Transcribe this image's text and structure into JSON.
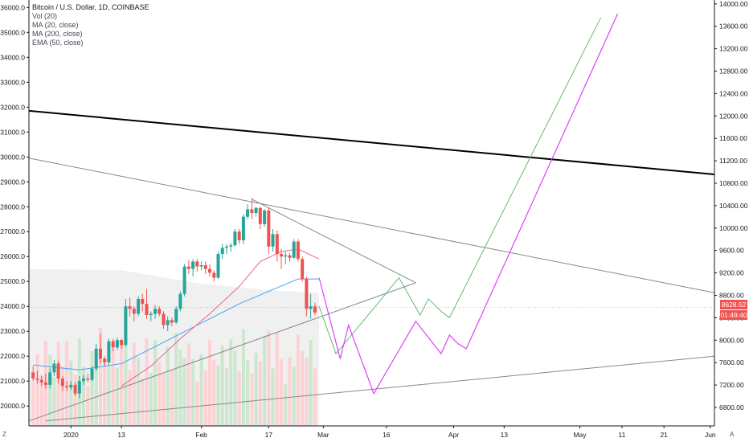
{
  "chart_data": {
    "type": "candlestick",
    "title": "Bitcoin / U.S. Dollar, 1D, COINBASE",
    "indicators": [
      "Vol (20)",
      "MA (20, close)",
      "MA (200, close)",
      "EMA (50, close)"
    ],
    "left_axis": {
      "ticks": [
        20000,
        21000,
        22000,
        23000,
        24000,
        25000,
        26000,
        27000,
        28000,
        29000,
        30000,
        31000,
        32000,
        33000,
        34000,
        35000,
        36000
      ],
      "labels": [
        "20000.0",
        "21000.0",
        "22000.0",
        "23000.0",
        "24000.0",
        "25000.0",
        "26000.0",
        "27000.0",
        "28000.0",
        "29000.0",
        "30000.0",
        "31000.0",
        "32000.0",
        "33000.0",
        "34000.0",
        "35000.0",
        "36000.0"
      ],
      "range": [
        19200,
        36300
      ]
    },
    "right_axis": {
      "ticks": [
        6800,
        7200,
        7600,
        8000,
        8400,
        8800,
        9200,
        9600,
        10000,
        10400,
        10800,
        11200,
        11600,
        12000,
        12400,
        12800,
        13200,
        13600,
        14000
      ],
      "labels": [
        "6800.00",
        "7200.00",
        "7600.00",
        "8000.00",
        "8400.00",
        "8800.00",
        "9200.00",
        "9600.00",
        "10000.00",
        "10400.00",
        "10800.00",
        "11200.00",
        "11600.00",
        "12000.00",
        "12400.00",
        "12800.00",
        "13200.00",
        "13600.00",
        "14000.00"
      ]
    },
    "x_axis": {
      "start_date": "2019-12-22",
      "end_date": "2020-06-02",
      "ticks": [
        {
          "date": "2020-01-01",
          "label": "2020"
        },
        {
          "date": "2020-01-13",
          "label": "13"
        },
        {
          "date": "2020-02-01",
          "label": "Feb"
        },
        {
          "date": "2020-02-17",
          "label": "17"
        },
        {
          "date": "2020-03-01",
          "label": "Mar"
        },
        {
          "date": "2020-03-16",
          "label": "16"
        },
        {
          "date": "2020-04-01",
          "label": "Apr"
        },
        {
          "date": "2020-04-13",
          "label": "13"
        },
        {
          "date": "2020-05-01",
          "label": "May"
        },
        {
          "date": "2020-05-11",
          "label": "11"
        },
        {
          "date": "2020-05-21",
          "label": "21"
        },
        {
          "date": "2020-06-01",
          "label": "Jun"
        }
      ]
    },
    "candles": [
      {
        "date": "2019-12-23",
        "o": 21350,
        "h": 21600,
        "l": 21000,
        "c": 21100
      },
      {
        "date": "2019-12-24",
        "o": 21100,
        "h": 21400,
        "l": 20900,
        "c": 21050
      },
      {
        "date": "2019-12-25",
        "o": 21050,
        "h": 21200,
        "l": 20800,
        "c": 20950
      },
      {
        "date": "2019-12-26",
        "o": 20950,
        "h": 21300,
        "l": 20700,
        "c": 20850
      },
      {
        "date": "2019-12-27",
        "o": 20850,
        "h": 21500,
        "l": 20700,
        "c": 21350
      },
      {
        "date": "2019-12-28",
        "o": 21350,
        "h": 21850,
        "l": 21200,
        "c": 21700
      },
      {
        "date": "2019-12-29",
        "o": 21700,
        "h": 21800,
        "l": 20900,
        "c": 21100
      },
      {
        "date": "2019-12-30",
        "o": 21100,
        "h": 21200,
        "l": 20600,
        "c": 20800
      },
      {
        "date": "2019-12-31",
        "o": 20800,
        "h": 21000,
        "l": 20600,
        "c": 20750
      },
      {
        "date": "2020-01-01",
        "o": 20750,
        "h": 21000,
        "l": 20650,
        "c": 20850
      },
      {
        "date": "2020-01-02",
        "o": 20850,
        "h": 20950,
        "l": 20400,
        "c": 20500
      },
      {
        "date": "2020-01-03",
        "o": 20500,
        "h": 21200,
        "l": 20300,
        "c": 21000
      },
      {
        "date": "2020-01-04",
        "o": 21000,
        "h": 21250,
        "l": 20850,
        "c": 21100
      },
      {
        "date": "2020-01-05",
        "o": 21100,
        "h": 21300,
        "l": 20950,
        "c": 21050
      },
      {
        "date": "2020-01-06",
        "o": 21050,
        "h": 21600,
        "l": 21000,
        "c": 21500
      },
      {
        "date": "2020-01-07",
        "o": 21500,
        "h": 22500,
        "l": 21400,
        "c": 22300
      },
      {
        "date": "2020-01-08",
        "o": 22300,
        "h": 22900,
        "l": 21700,
        "c": 21900
      },
      {
        "date": "2020-01-09",
        "o": 21900,
        "h": 22000,
        "l": 21600,
        "c": 21750
      },
      {
        "date": "2020-01-10",
        "o": 21750,
        "h": 22700,
        "l": 21600,
        "c": 22600
      },
      {
        "date": "2020-01-11",
        "o": 22600,
        "h": 22700,
        "l": 22200,
        "c": 22350
      },
      {
        "date": "2020-01-12",
        "o": 22350,
        "h": 22750,
        "l": 22250,
        "c": 22650
      },
      {
        "date": "2020-01-13",
        "o": 22650,
        "h": 22700,
        "l": 22300,
        "c": 22450
      },
      {
        "date": "2020-01-14",
        "o": 22450,
        "h": 24300,
        "l": 22400,
        "c": 24000
      },
      {
        "date": "2020-01-15",
        "o": 24000,
        "h": 24350,
        "l": 23600,
        "c": 23900
      },
      {
        "date": "2020-01-16",
        "o": 23900,
        "h": 24000,
        "l": 23400,
        "c": 23700
      },
      {
        "date": "2020-01-17",
        "o": 23700,
        "h": 24400,
        "l": 23600,
        "c": 24300
      },
      {
        "date": "2020-01-18",
        "o": 24300,
        "h": 24500,
        "l": 23800,
        "c": 24100
      },
      {
        "date": "2020-01-19",
        "o": 24100,
        "h": 24700,
        "l": 23500,
        "c": 23650
      },
      {
        "date": "2020-01-20",
        "o": 23650,
        "h": 23800,
        "l": 23400,
        "c": 23700
      },
      {
        "date": "2020-01-21",
        "o": 23700,
        "h": 24050,
        "l": 23500,
        "c": 23900
      },
      {
        "date": "2020-01-22",
        "o": 23900,
        "h": 24000,
        "l": 23600,
        "c": 23700
      },
      {
        "date": "2020-01-23",
        "o": 23700,
        "h": 23800,
        "l": 23100,
        "c": 23250
      },
      {
        "date": "2020-01-24",
        "o": 23250,
        "h": 23600,
        "l": 23000,
        "c": 23450
      },
      {
        "date": "2020-01-25",
        "o": 23450,
        "h": 23550,
        "l": 23200,
        "c": 23350
      },
      {
        "date": "2020-01-26",
        "o": 23350,
        "h": 24000,
        "l": 23300,
        "c": 23900
      },
      {
        "date": "2020-01-27",
        "o": 23900,
        "h": 24600,
        "l": 23800,
        "c": 24500
      },
      {
        "date": "2020-01-28",
        "o": 24500,
        "h": 25700,
        "l": 24400,
        "c": 25600
      },
      {
        "date": "2020-01-29",
        "o": 25600,
        "h": 25850,
        "l": 25300,
        "c": 25500
      },
      {
        "date": "2020-01-30",
        "o": 25500,
        "h": 25900,
        "l": 25200,
        "c": 25800
      },
      {
        "date": "2020-01-31",
        "o": 25800,
        "h": 25900,
        "l": 25400,
        "c": 25600
      },
      {
        "date": "2020-02-01",
        "o": 25600,
        "h": 25800,
        "l": 25450,
        "c": 25650
      },
      {
        "date": "2020-02-02",
        "o": 25650,
        "h": 25800,
        "l": 25300,
        "c": 25500
      },
      {
        "date": "2020-02-03",
        "o": 25500,
        "h": 25700,
        "l": 25200,
        "c": 25350
      },
      {
        "date": "2020-02-04",
        "o": 25350,
        "h": 25450,
        "l": 25000,
        "c": 25150
      },
      {
        "date": "2020-02-05",
        "o": 25150,
        "h": 26200,
        "l": 25100,
        "c": 26100
      },
      {
        "date": "2020-02-06",
        "o": 26100,
        "h": 26500,
        "l": 25900,
        "c": 26350
      },
      {
        "date": "2020-02-07",
        "o": 26350,
        "h": 26500,
        "l": 26100,
        "c": 26400
      },
      {
        "date": "2020-02-08",
        "o": 26400,
        "h": 26550,
        "l": 26200,
        "c": 26450
      },
      {
        "date": "2020-02-09",
        "o": 26450,
        "h": 27100,
        "l": 26400,
        "c": 27000
      },
      {
        "date": "2020-02-10",
        "o": 27000,
        "h": 27100,
        "l": 26500,
        "c": 26650
      },
      {
        "date": "2020-02-11",
        "o": 26650,
        "h": 27700,
        "l": 26500,
        "c": 27600
      },
      {
        "date": "2020-02-12",
        "o": 27600,
        "h": 28100,
        "l": 27500,
        "c": 27900
      },
      {
        "date": "2020-02-13",
        "o": 27900,
        "h": 28350,
        "l": 27500,
        "c": 27750
      },
      {
        "date": "2020-02-14",
        "o": 27750,
        "h": 28000,
        "l": 27600,
        "c": 27950
      },
      {
        "date": "2020-02-15",
        "o": 27950,
        "h": 28000,
        "l": 27100,
        "c": 27300
      },
      {
        "date": "2020-02-16",
        "o": 27300,
        "h": 27900,
        "l": 27200,
        "c": 27850
      },
      {
        "date": "2020-02-17",
        "o": 27850,
        "h": 27950,
        "l": 26100,
        "c": 26400
      },
      {
        "date": "2020-02-18",
        "o": 26400,
        "h": 27100,
        "l": 26200,
        "c": 26900
      },
      {
        "date": "2020-02-19",
        "o": 26900,
        "h": 27050,
        "l": 25800,
        "c": 26100
      },
      {
        "date": "2020-02-20",
        "o": 26100,
        "h": 26300,
        "l": 25500,
        "c": 26000
      },
      {
        "date": "2020-02-21",
        "o": 26000,
        "h": 26200,
        "l": 25700,
        "c": 26050
      },
      {
        "date": "2020-02-22",
        "o": 26050,
        "h": 26150,
        "l": 25800,
        "c": 25950
      },
      {
        "date": "2020-02-23",
        "o": 25950,
        "h": 26700,
        "l": 25900,
        "c": 26600
      },
      {
        "date": "2020-02-24",
        "o": 26600,
        "h": 26700,
        "l": 25800,
        "c": 25900
      },
      {
        "date": "2020-02-25",
        "o": 25900,
        "h": 26000,
        "l": 25000,
        "c": 25100
      },
      {
        "date": "2020-02-26",
        "o": 25100,
        "h": 25200,
        "l": 23600,
        "c": 23900
      },
      {
        "date": "2020-02-27",
        "o": 23900,
        "h": 24500,
        "l": 23500,
        "c": 24000
      },
      {
        "date": "2020-02-28",
        "o": 24000,
        "h": 24150,
        "l": 23650,
        "c": 23750
      }
    ],
    "ma20": [
      [
        "2020-01-13",
        20800
      ],
      [
        "2020-01-20",
        21600
      ],
      [
        "2020-01-27",
        22700
      ],
      [
        "2020-02-03",
        23700
      ],
      [
        "2020-02-10",
        24800
      ],
      [
        "2020-02-15",
        25800
      ],
      [
        "2020-02-20",
        26200
      ],
      [
        "2020-02-24",
        26300
      ],
      [
        "2020-02-29",
        25900
      ]
    ],
    "ema50": [
      [
        "2019-12-23",
        21650
      ],
      [
        "2020-01-03",
        21450
      ],
      [
        "2020-01-13",
        21700
      ],
      [
        "2020-01-20",
        22300
      ],
      [
        "2020-01-27",
        22900
      ],
      [
        "2020-02-03",
        23500
      ],
      [
        "2020-02-10",
        24100
      ],
      [
        "2020-02-17",
        24600
      ],
      [
        "2020-02-24",
        25100
      ],
      [
        "2020-02-29",
        25100
      ]
    ],
    "projections": {
      "green": [
        [
          "2020-02-29",
          24000
        ],
        [
          "2020-03-04",
          22100
        ],
        [
          "2020-03-06",
          22500
        ],
        [
          "2020-03-19",
          25150
        ],
        [
          "2020-03-24",
          23650
        ],
        [
          "2020-03-26",
          24300
        ],
        [
          "2020-03-29",
          23800
        ],
        [
          "2020-03-31",
          23550
        ],
        [
          "2020-05-06",
          35600
        ]
      ],
      "magenta": [
        [
          "2020-02-29",
          25150
        ],
        [
          "2020-03-05",
          21900
        ],
        [
          "2020-03-07",
          23250
        ],
        [
          "2020-03-13",
          20500
        ],
        [
          "2020-03-23",
          23400
        ],
        [
          "2020-03-29",
          22100
        ],
        [
          "2020-03-31",
          22850
        ],
        [
          "2020-04-02",
          22500
        ],
        [
          "2020-04-04",
          22300
        ],
        [
          "2020-05-10",
          35750
        ]
      ]
    },
    "trendlines": [
      {
        "color": "#000000",
        "width": 2,
        "from": [
          "2019-12-22",
          31850
        ],
        "to": [
          "2020-06-02",
          29300
        ]
      },
      {
        "color": "#888888",
        "width": 1,
        "from": [
          "2019-12-22",
          29950
        ],
        "to": [
          "2020-06-02",
          24550
        ]
      },
      {
        "color": "#888888",
        "width": 1,
        "from": [
          "2020-02-13",
          28300
        ],
        "to": [
          "2020-03-23",
          24950
        ]
      },
      {
        "color": "#888888",
        "width": 1,
        "from": [
          "2019-12-22",
          19400
        ],
        "to": [
          "2020-03-23",
          24950
        ]
      },
      {
        "color": "#888888",
        "width": 1,
        "from": [
          "2019-12-26",
          19400
        ],
        "to": [
          "2020-06-02",
          22000
        ]
      }
    ],
    "volume_cloud": [
      [
        "2019-12-22",
        25500
      ],
      [
        "2020-01-13",
        25450
      ],
      [
        "2020-02-01",
        24900
      ],
      [
        "2020-02-17",
        24650
      ],
      [
        "2020-02-29",
        24550
      ]
    ],
    "current_price": {
      "value": "8628.52",
      "countdown": "01:49:40",
      "level": 23950
    },
    "colors": {
      "up": "#26a69a",
      "down": "#ef5350",
      "ma20": "#f06292",
      "ema50": "#42a5f5",
      "projection_green": "#66bb6a",
      "projection_magenta": "#e040fb",
      "axis": "#131722",
      "grid": "#f0f3fa"
    }
  },
  "legend": {
    "title": "Bitcoin / U.S. Dollar, 1D, COINBASE",
    "lines": [
      "Vol (20)",
      "MA (20, close)",
      "MA (200, close)",
      "EMA (50, close)"
    ]
  },
  "corners": {
    "left": "Z",
    "right": "A"
  }
}
